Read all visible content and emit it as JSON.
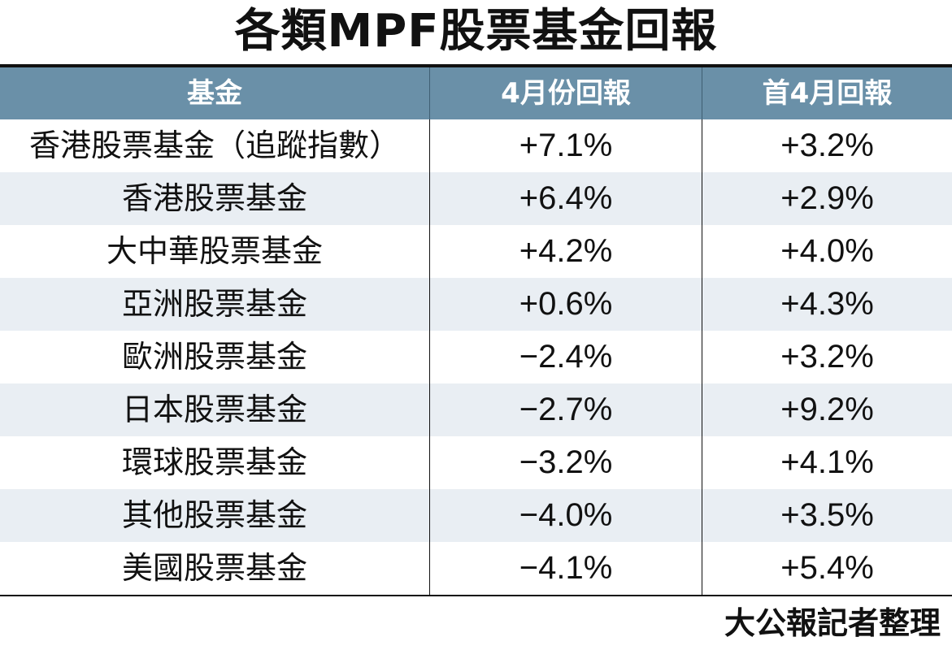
{
  "title": "各類MPF股票基金回報",
  "table": {
    "headers": [
      "基金",
      "4月份回報",
      "首4月回報"
    ],
    "rows": [
      {
        "fund": "香港股票基金（追蹤指數）",
        "april": "+7.1%",
        "ytd": "+3.2%"
      },
      {
        "fund": "香港股票基金",
        "april": "+6.4%",
        "ytd": "+2.9%"
      },
      {
        "fund": "大中華股票基金",
        "april": "+4.2%",
        "ytd": "+4.0%"
      },
      {
        "fund": "亞洲股票基金",
        "april": "+0.6%",
        "ytd": "+4.3%"
      },
      {
        "fund": "歐洲股票基金",
        "april": "−2.4%",
        "ytd": "+3.2%"
      },
      {
        "fund": "日本股票基金",
        "april": "−2.7%",
        "ytd": "+9.2%"
      },
      {
        "fund": "環球股票基金",
        "april": "−3.2%",
        "ytd": "+4.1%"
      },
      {
        "fund": "其他股票基金",
        "april": "−4.0%",
        "ytd": "+3.5%"
      },
      {
        "fund": "美國股票基金",
        "april": "−4.1%",
        "ytd": "+5.4%"
      }
    ]
  },
  "source": "大公報記者整理",
  "colors": {
    "header_bg": "#6a90a8",
    "stripe_bg": "#e9eef3",
    "text": "#111111"
  }
}
